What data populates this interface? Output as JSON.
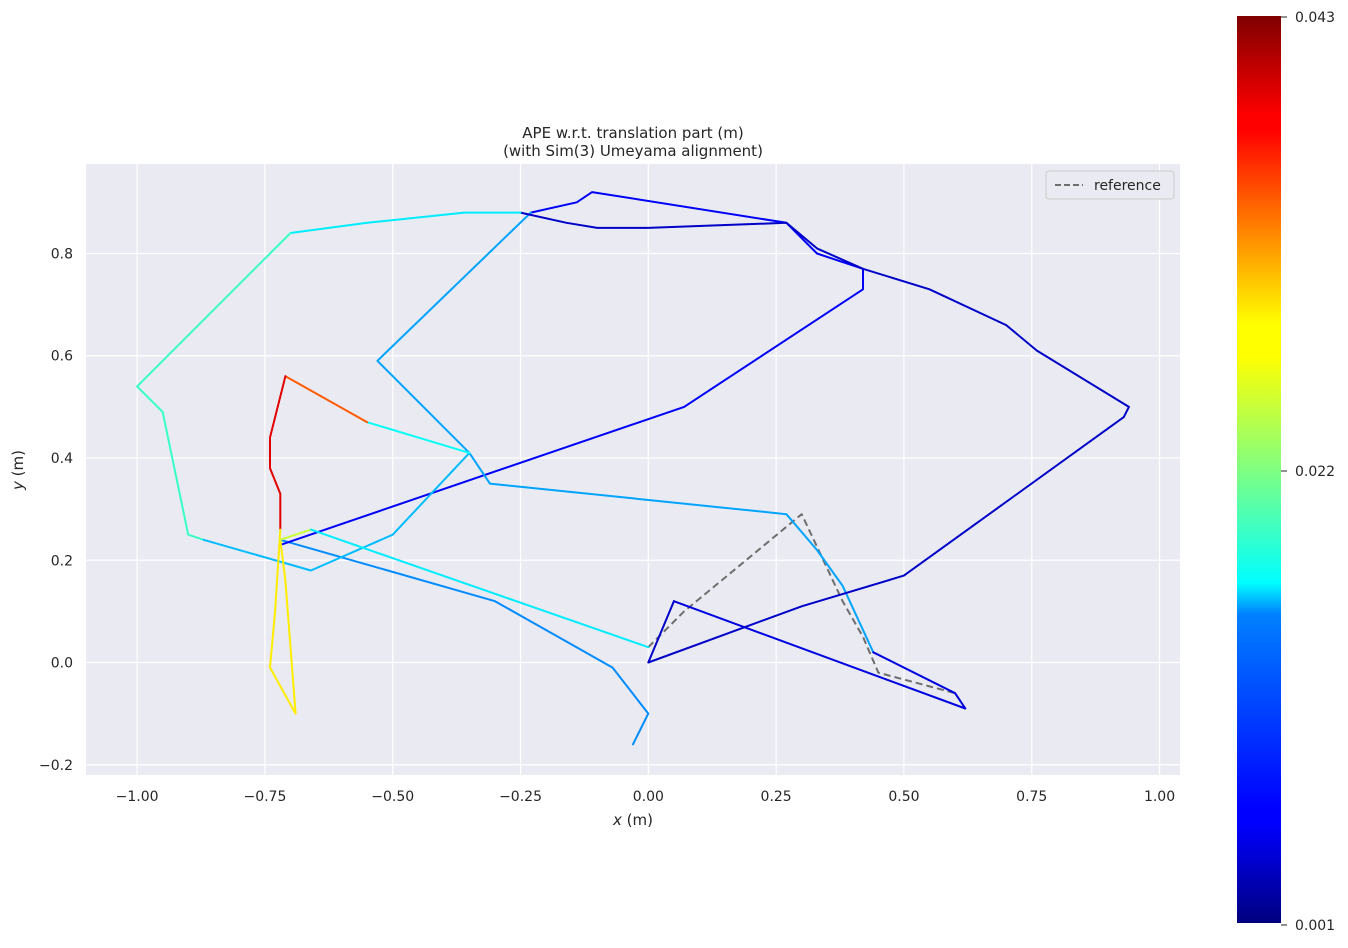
{
  "chart_data": {
    "type": "line",
    "title": "APE w.r.t. translation part (m)",
    "subtitle": "(with Sim(3) Umeyama alignment)",
    "xlabel_var": "x",
    "xlabel_unit": "(m)",
    "ylabel_var": "y",
    "ylabel_unit": "(m)",
    "xlim": [
      -1.1,
      1.04
    ],
    "ylim": [
      -0.22,
      0.975
    ],
    "xticks": [
      -1.0,
      -0.75,
      -0.5,
      -0.25,
      0.0,
      0.25,
      0.5,
      0.75,
      1.0
    ],
    "xtick_labels": [
      "−1.00",
      "−0.75",
      "−0.50",
      "−0.25",
      "0.00",
      "0.25",
      "0.50",
      "0.75",
      "1.00"
    ],
    "yticks": [
      -0.2,
      0.0,
      0.2,
      0.4,
      0.6,
      0.8
    ],
    "ytick_labels": [
      "−0.2",
      "0.0",
      "0.2",
      "0.4",
      "0.6",
      "0.8"
    ],
    "grid": true,
    "legend": {
      "placement": "top-right",
      "entries": [
        "reference"
      ]
    },
    "colorbar": {
      "min": 0.001,
      "max": 0.043,
      "labels": [
        "0.001",
        "0.022",
        "0.043"
      ],
      "colormap": "jet"
    },
    "colors": {
      "axes_bg": "#eaeaf2",
      "grid": "#ffffff",
      "reference": "#6e6e6e"
    },
    "series": [
      {
        "name": "reference",
        "style": "dashed",
        "x": [
          0.0,
          0.07,
          0.3,
          0.38,
          0.42,
          0.45,
          0.6,
          0.62
        ],
        "y": [
          0.03,
          0.1,
          0.29,
          0.12,
          0.05,
          -0.02,
          -0.06,
          -0.09
        ]
      }
    ],
    "estimate_segments": [
      {
        "x": [
          -0.03,
          0.0,
          -0.07,
          -0.3,
          -0.72
        ],
        "y": [
          -0.16,
          -0.1,
          -0.01,
          0.12,
          0.24
        ],
        "error": 0.012
      },
      {
        "x": [
          -0.72,
          0.07,
          0.42,
          0.42,
          0.33,
          0.27,
          -0.11,
          -0.14,
          -0.23
        ],
        "y": [
          0.23,
          0.5,
          0.73,
          0.77,
          0.8,
          0.86,
          0.92,
          0.9,
          0.88
        ],
        "error": 0.006
      },
      {
        "x": [
          -0.23,
          -0.53,
          -0.35,
          -0.31,
          0.27,
          0.33,
          0.38,
          0.44
        ],
        "y": [
          0.88,
          0.59,
          0.41,
          0.35,
          0.29,
          0.22,
          0.15,
          0.02
        ],
        "error": 0.013
      },
      {
        "x": [
          0.44,
          0.6,
          0.62,
          0.05
        ],
        "y": [
          0.02,
          -0.06,
          -0.09,
          0.12
        ],
        "error": 0.005
      },
      {
        "x": [
          0.05,
          0.0,
          0.3,
          0.5,
          0.93,
          0.94,
          0.76,
          0.7,
          0.55,
          0.42,
          0.33,
          0.27,
          0.0,
          -0.1,
          -0.16,
          -0.25
        ],
        "y": [
          0.12,
          0.0,
          0.11,
          0.17,
          0.48,
          0.5,
          0.61,
          0.66,
          0.73,
          0.77,
          0.81,
          0.86,
          0.85,
          0.85,
          0.86,
          0.88
        ],
        "error": 0.004
      },
      {
        "x": [
          -0.25,
          -0.36,
          -0.55,
          -0.7
        ],
        "y": [
          0.88,
          0.88,
          0.86,
          0.84
        ],
        "error": 0.016
      },
      {
        "x": [
          -0.7,
          -1.0,
          -0.95,
          -0.9,
          -0.87
        ],
        "y": [
          0.84,
          0.54,
          0.49,
          0.25,
          0.24
        ],
        "error": 0.019
      },
      {
        "x": [
          -0.87,
          -0.66,
          -0.5,
          -0.35
        ],
        "y": [
          0.24,
          0.18,
          0.25,
          0.41
        ],
        "error": 0.014
      },
      {
        "x": [
          -0.35,
          -0.55
        ],
        "y": [
          0.41,
          0.47
        ],
        "error": 0.017
      },
      {
        "x": [
          -0.55,
          -0.71
        ],
        "y": [
          0.47,
          0.56
        ],
        "error": 0.034
      },
      {
        "x": [
          -0.71,
          -0.74,
          -0.74,
          -0.72,
          -0.72
        ],
        "y": [
          0.56,
          0.44,
          0.38,
          0.33,
          0.26
        ],
        "error": 0.039
      },
      {
        "x": [
          -0.72,
          -0.73,
          -0.74,
          -0.69,
          -0.71,
          -0.72
        ],
        "y": [
          0.26,
          0.1,
          -0.01,
          -0.1,
          0.16,
          0.24
        ],
        "error": 0.028
      },
      {
        "x": [
          -0.72,
          -0.66
        ],
        "y": [
          0.24,
          0.26
        ],
        "error": 0.025
      },
      {
        "x": [
          -0.66,
          0.0
        ],
        "y": [
          0.26,
          0.03
        ],
        "error": 0.016
      }
    ]
  }
}
